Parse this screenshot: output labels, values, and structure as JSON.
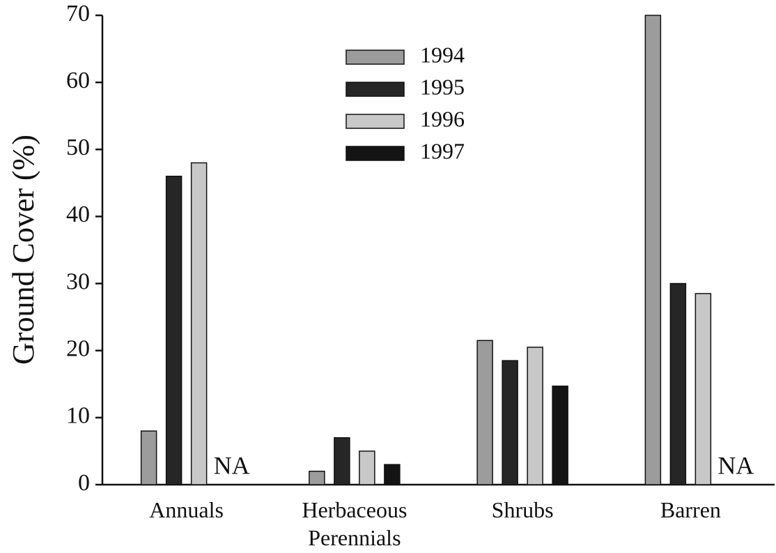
{
  "chart_data": {
    "type": "bar",
    "y_label": "Ground Cover (%)",
    "categories": [
      "Annuals",
      "Herbaceous Perennials",
      "Shrubs",
      "Barren"
    ],
    "series": [
      {
        "name": "1994",
        "color": "#9c9c9c",
        "values": [
          8,
          2,
          21.5,
          70
        ]
      },
      {
        "name": "1995",
        "color": "#262626",
        "values": [
          46,
          7,
          18.5,
          30
        ]
      },
      {
        "name": "1996",
        "color": "#c8c8c8",
        "values": [
          48,
          5,
          20.5,
          28.5
        ]
      },
      {
        "name": "1997",
        "color": "#141414",
        "values": [
          null,
          3,
          14.7,
          null
        ],
        "value_labels": [
          "NA",
          null,
          null,
          "NA"
        ]
      }
    ],
    "ylim": [
      0,
      70
    ],
    "yticks": [
      0,
      10,
      20,
      30,
      40,
      50,
      60,
      70
    ],
    "grid": false
  }
}
